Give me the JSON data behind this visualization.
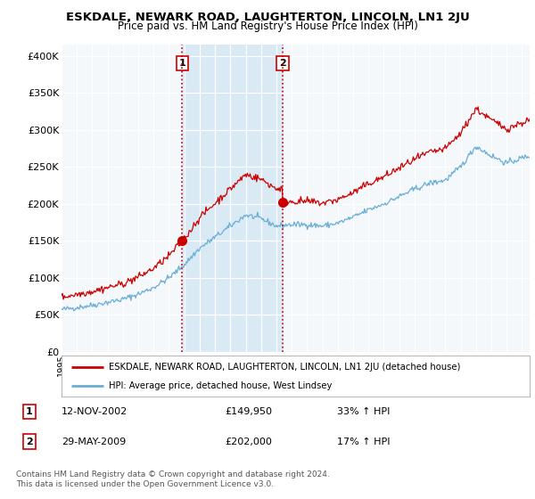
{
  "title": "ESKDALE, NEWARK ROAD, LAUGHTERTON, LINCOLN, LN1 2JU",
  "subtitle": "Price paid vs. HM Land Registry's House Price Index (HPI)",
  "ylabel_ticks": [
    "£0",
    "£50K",
    "£100K",
    "£150K",
    "£200K",
    "£250K",
    "£300K",
    "£350K",
    "£400K"
  ],
  "ytick_values": [
    0,
    50000,
    100000,
    150000,
    200000,
    250000,
    300000,
    350000,
    400000
  ],
  "ylim": [
    0,
    415000
  ],
  "xlim_start": 1995.0,
  "xlim_end": 2025.5,
  "sale1_x": 2002.87,
  "sale1_y": 149950,
  "sale2_x": 2009.41,
  "sale2_y": 202000,
  "sale1_label": "1",
  "sale2_label": "2",
  "legend_entries": [
    "ESKDALE, NEWARK ROAD, LAUGHTERTON, LINCOLN, LN1 2JU (detached house)",
    "HPI: Average price, detached house, West Lindsey"
  ],
  "table_rows": [
    {
      "num": "1",
      "date": "12-NOV-2002",
      "price": "£149,950",
      "change": "33% ↑ HPI"
    },
    {
      "num": "2",
      "date": "29-MAY-2009",
      "price": "£202,000",
      "change": "17% ↑ HPI"
    }
  ],
  "footnote": "Contains HM Land Registry data © Crown copyright and database right 2024.\nThis data is licensed under the Open Government Licence v3.0.",
  "hpi_color": "#6aaed6",
  "price_color": "#cc0000",
  "background_color": "#ffffff",
  "plot_bg_color": "#f5f8fb",
  "shade_color": "#daeaf5"
}
